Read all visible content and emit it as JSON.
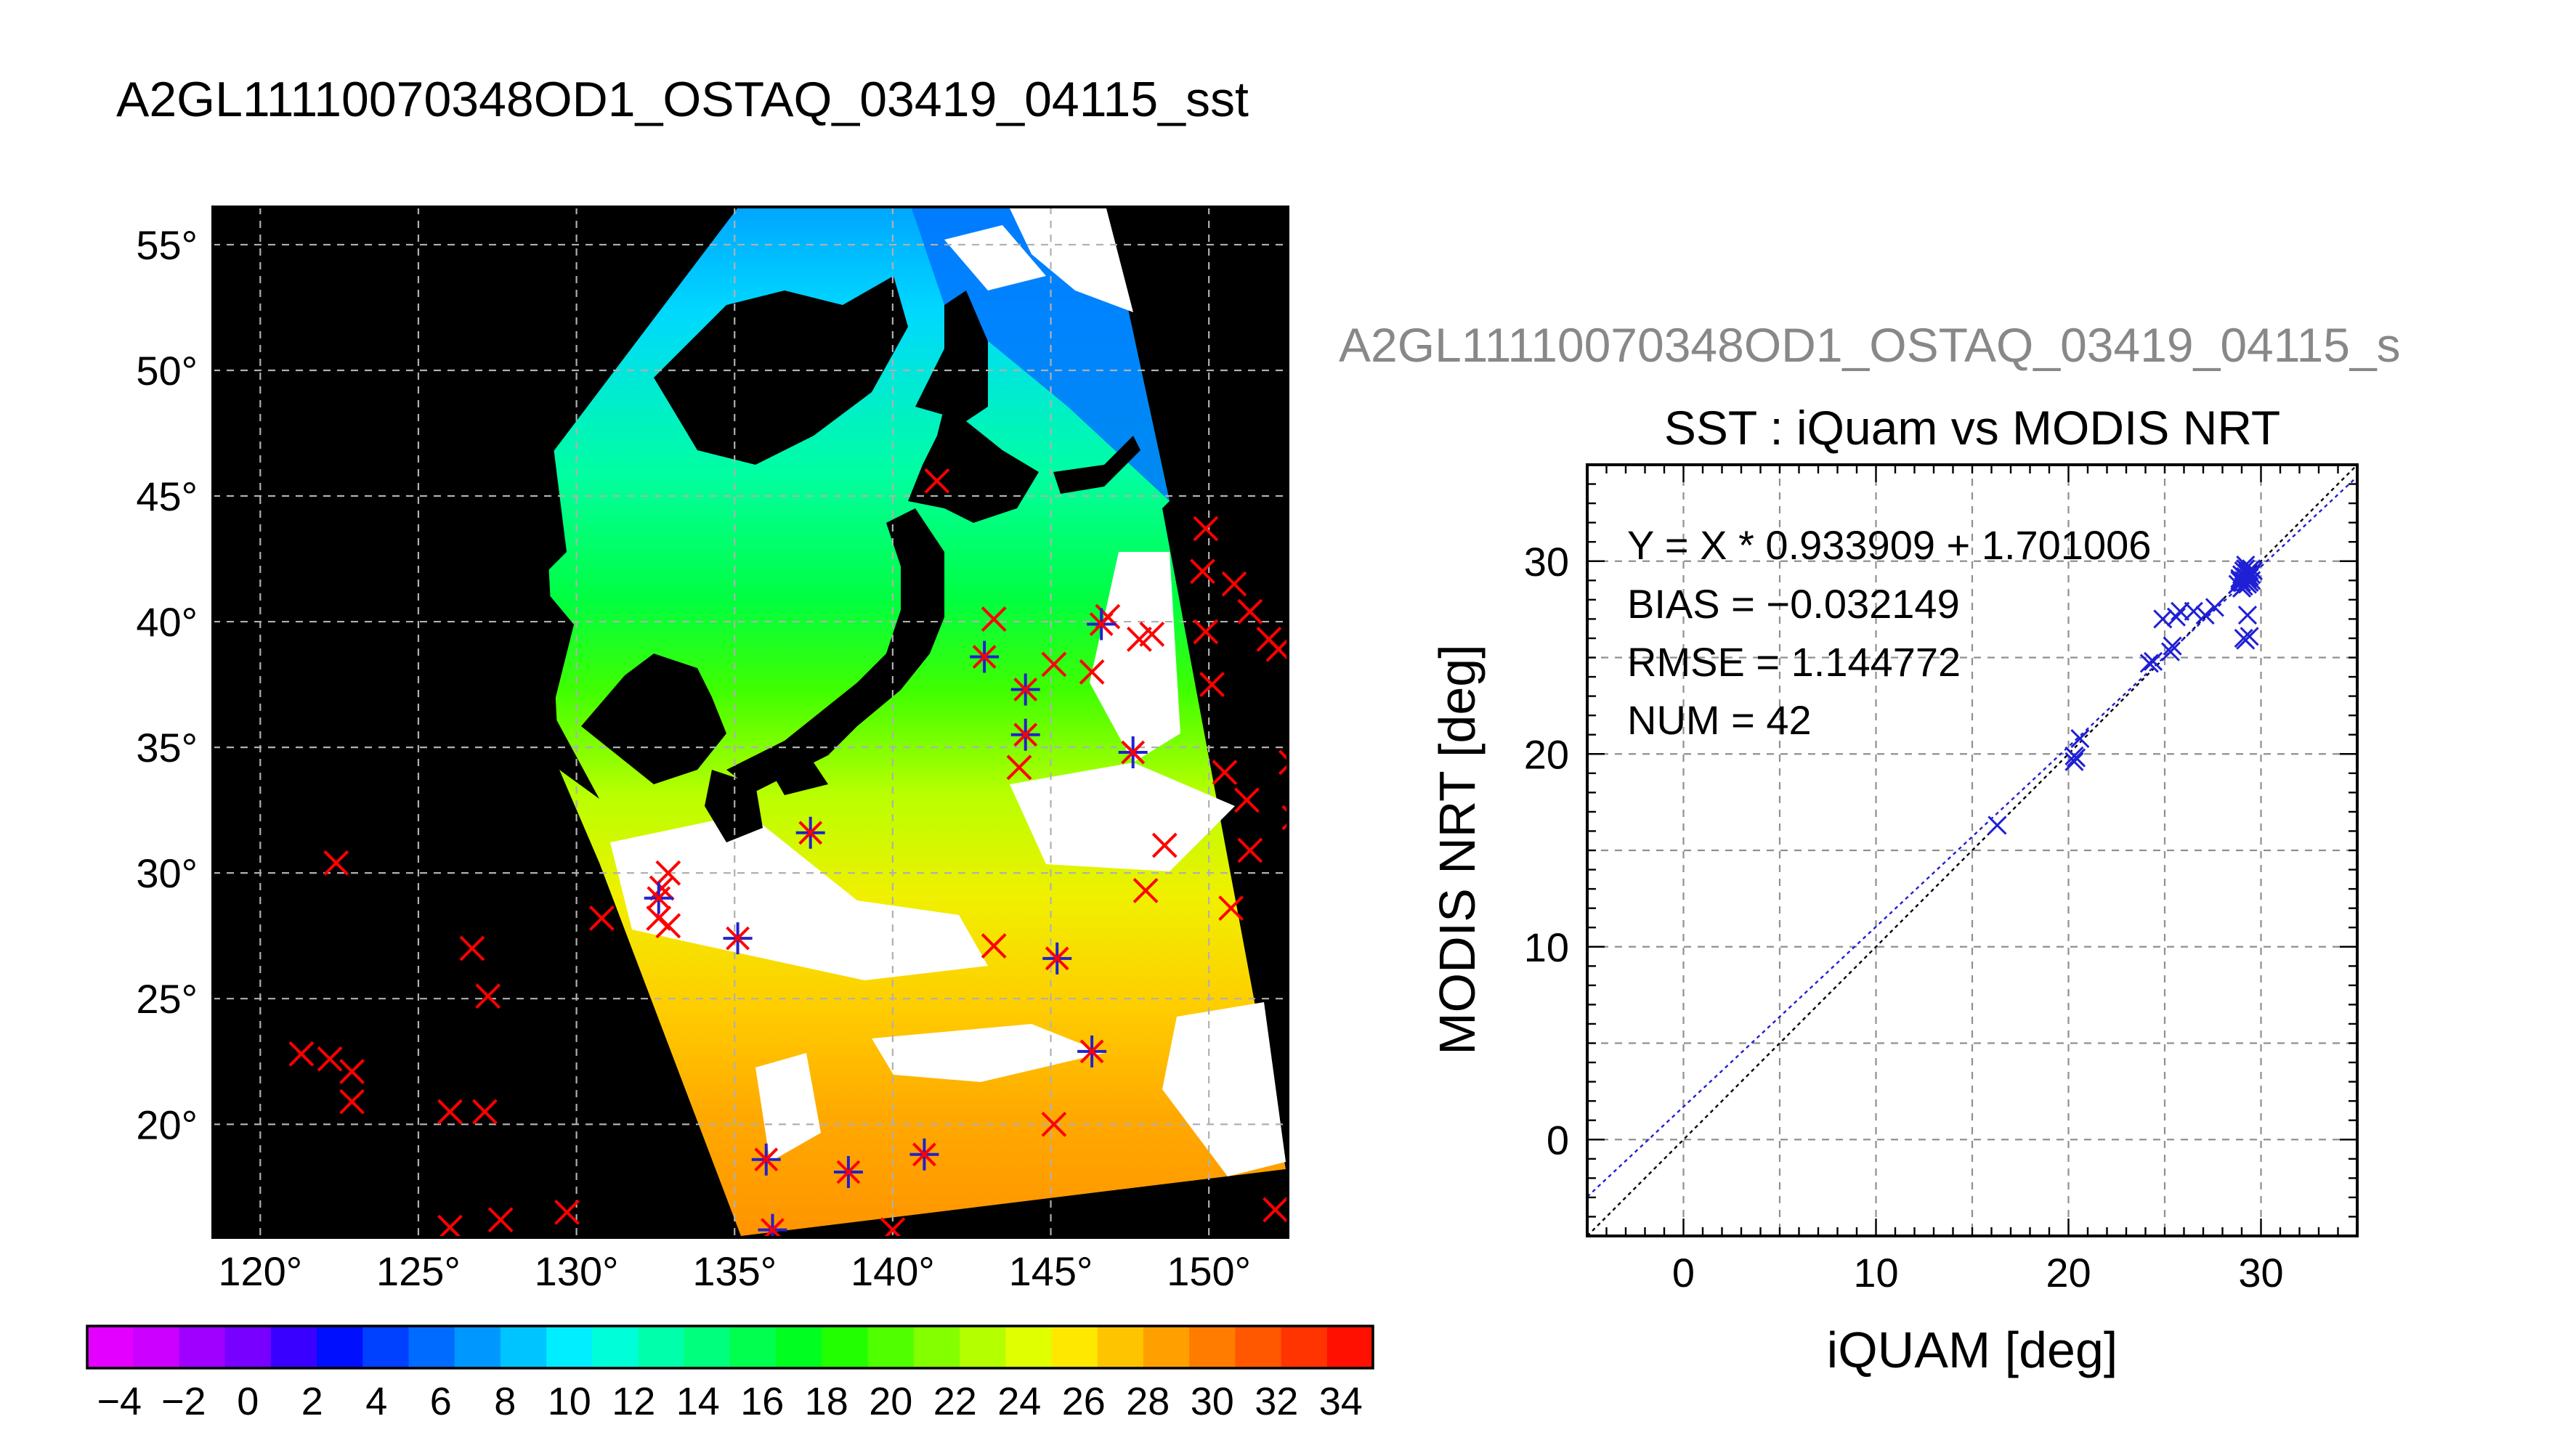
{
  "main_title": "A2GL11110070348OD1_OSTAQ_03419_04115_sst",
  "map": {
    "lon_ticks": [
      "120°",
      "125°",
      "130°",
      "135°",
      "140°",
      "145°",
      "150°"
    ],
    "lat_ticks": [
      "55°",
      "50°",
      "45°",
      "40°",
      "35°",
      "30°",
      "25°",
      "20°"
    ],
    "lon_range": [
      118.5,
      152.5
    ],
    "lat_range": [
      15.5,
      56.5
    ],
    "grid_lon": [
      120,
      125,
      130,
      135,
      140,
      145,
      150
    ],
    "grid_lat": [
      20,
      25,
      30,
      35,
      40,
      45,
      50,
      55
    ],
    "marker_color": "#ff0000",
    "matchup_marker_color": "#2222cc",
    "background_color": "#000000",
    "cloud_color": "#ffffff",
    "land_color": "#000000",
    "red_markers": [
      [
        121.3,
        22.8
      ],
      [
        122.2,
        22.6
      ],
      [
        122.9,
        22.1
      ],
      [
        122.9,
        20.9
      ],
      [
        122.4,
        30.4
      ],
      [
        126.0,
        20.5
      ],
      [
        127.1,
        20.5
      ],
      [
        126.7,
        27.0
      ],
      [
        127.2,
        25.1
      ],
      [
        126.0,
        15.9
      ],
      [
        127.6,
        16.2
      ],
      [
        129.7,
        16.5
      ],
      [
        130.8,
        28.2
      ],
      [
        132.6,
        28.2
      ],
      [
        132.9,
        27.9
      ],
      [
        132.7,
        29.4
      ],
      [
        132.9,
        30.0
      ],
      [
        140.0,
        15.8
      ],
      [
        143.2,
        40.1
      ],
      [
        143.2,
        27.1
      ],
      [
        144.0,
        34.2
      ],
      [
        145.1,
        38.3
      ],
      [
        146.3,
        38.0
      ],
      [
        146.8,
        40.2
      ],
      [
        147.8,
        39.3
      ],
      [
        148.2,
        39.5
      ],
      [
        148.0,
        29.3
      ],
      [
        148.6,
        31.1
      ],
      [
        145.1,
        20.0
      ],
      [
        141.4,
        45.6
      ],
      [
        149.9,
        43.7
      ],
      [
        149.8,
        42.0
      ],
      [
        150.8,
        41.5
      ],
      [
        151.3,
        40.4
      ],
      [
        149.9,
        39.6
      ],
      [
        151.9,
        39.3
      ],
      [
        152.2,
        38.9
      ],
      [
        150.1,
        37.5
      ],
      [
        150.5,
        34.0
      ],
      [
        151.2,
        32.9
      ],
      [
        151.3,
        30.9
      ],
      [
        150.7,
        28.6
      ],
      [
        152.7,
        32.2
      ],
      [
        152.6,
        34.4
      ],
      [
        152.1,
        16.6
      ]
    ],
    "matchup_markers": [
      [
        137.4,
        31.6
      ],
      [
        135.1,
        27.4
      ],
      [
        132.6,
        29.0
      ],
      [
        136.0,
        18.6
      ],
      [
        138.6,
        18.1
      ],
      [
        141.0,
        18.8
      ],
      [
        146.3,
        22.9
      ],
      [
        145.2,
        26.6
      ],
      [
        142.9,
        38.6
      ],
      [
        144.2,
        37.3
      ],
      [
        144.2,
        35.5
      ],
      [
        146.6,
        39.9
      ],
      [
        147.6,
        34.8
      ],
      [
        136.2,
        15.8
      ]
    ]
  },
  "colorbar": {
    "tick_labels": [
      "-4",
      "-2",
      "0",
      "2",
      "4",
      "6",
      "8",
      "10",
      "12",
      "14",
      "16",
      "18",
      "20",
      "22",
      "24",
      "26",
      "28",
      "30",
      "32",
      "34"
    ],
    "range": [
      -5,
      35
    ],
    "colors": [
      "#e400ff",
      "#cc00ff",
      "#a000ff",
      "#7800ff",
      "#3a00ff",
      "#0010ff",
      "#0040ff",
      "#006cff",
      "#0098ff",
      "#00c4ff",
      "#00eeff",
      "#00ffd8",
      "#00ffaa",
      "#00ff7c",
      "#00ff4e",
      "#00ff20",
      "#22ff00",
      "#50ff00",
      "#84ff00",
      "#b4ff00",
      "#e0ff00",
      "#ffe800",
      "#ffc400",
      "#ffa000",
      "#ff7c00",
      "#ff5800",
      "#ff3400",
      "#ff1000"
    ]
  },
  "scatter": {
    "overlay_title": "A2GL11110070348OD1_OSTAQ_03419_04115_s",
    "title": "SST : iQuam vs MODIS NRT",
    "xlabel": "iQUAM [deg]",
    "ylabel": "MODIS NRT [deg]",
    "stats": [
      "Y = X * 0.933909 + 1.701006",
      "BIAS = −0.032149",
      "RMSE = 1.144772",
      "NUM = 42"
    ],
    "overlay_title_color": "#888888",
    "point_color": "#1f1fd6",
    "fit_line_color": "#1f1fd6",
    "identity_line_color": "#000000"
  },
  "chart_data": {
    "type": "scatter",
    "title": "SST : iQuam vs MODIS NRT",
    "xlabel": "iQUAM [deg]",
    "ylabel": "MODIS NRT [deg]",
    "xlim": [
      -5,
      35
    ],
    "ylim": [
      -5,
      35
    ],
    "xticks": [
      0,
      10,
      20,
      30
    ],
    "yticks": [
      0,
      10,
      20,
      30
    ],
    "grid": true,
    "fit": {
      "slope": 0.933909,
      "intercept": 1.701006
    },
    "series": [
      {
        "x": [
          16.3,
          20.3,
          20.3,
          20.4,
          20.6,
          24.2,
          24.4,
          24.9,
          25.3,
          25.4,
          25.6,
          25.8,
          26.5,
          27.1,
          27.6,
          28.8,
          28.9,
          29.0,
          29.0,
          29.1,
          29.1,
          29.1,
          29.2,
          29.2,
          29.2,
          29.3,
          29.3,
          29.3,
          29.4,
          29.4,
          29.4,
          29.5,
          29.5,
          29.5,
          29.1,
          29.2,
          29.3,
          29.4,
          28.9,
          29.2,
          29.0,
          29.6
        ],
        "y": [
          16.3,
          19.6,
          19.9,
          19.8,
          20.8,
          24.7,
          24.8,
          27.0,
          25.3,
          25.6,
          27.1,
          27.4,
          27.4,
          27.2,
          27.6,
          28.8,
          29.1,
          28.9,
          29.3,
          29.0,
          29.5,
          28.7,
          29.2,
          29.6,
          28.9,
          29.1,
          29.4,
          28.8,
          29.2,
          29.5,
          28.9,
          29.3,
          29.0,
          29.6,
          26.0,
          25.9,
          27.2,
          26.1,
          29.0,
          29.8,
          28.6,
          29.5
        ]
      }
    ]
  }
}
